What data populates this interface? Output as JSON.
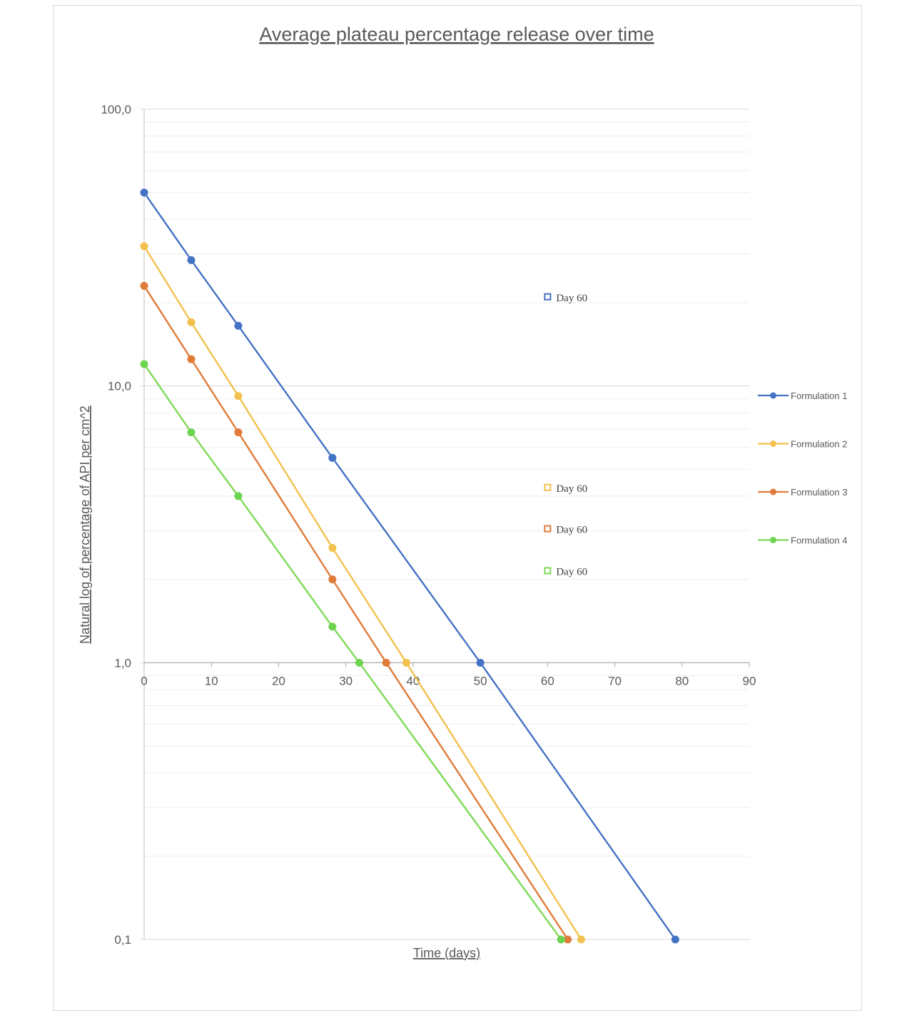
{
  "chart_data": {
    "type": "line",
    "title": "Average plateau percentage release over time",
    "xlabel": "Time (days)",
    "ylabel": "Natural log of percentage of API per cm^2",
    "xlim": [
      0,
      90
    ],
    "ylim": [
      0.1,
      100
    ],
    "yscale": "log",
    "x_ticks": [
      "0",
      "10",
      "20",
      "30",
      "40",
      "50",
      "60",
      "70",
      "80",
      "90"
    ],
    "y_ticks": [
      "0,1",
      "1,0",
      "10,0",
      "100,0"
    ],
    "grid": "horizontal major and minor",
    "legend_position": "right",
    "series": [
      {
        "name": "Formulation 1",
        "color": "#4472C4",
        "marker_color": "#4472C4",
        "x": [
          0,
          7,
          14,
          28,
          50,
          79
        ],
        "y": [
          50,
          28.5,
          16.5,
          5.5,
          1.0,
          0.1
        ]
      },
      {
        "name": "Formulation 2",
        "color": "#F2C14E",
        "marker_color": "#F2C14E",
        "x": [
          0,
          7,
          14,
          28,
          39,
          65
        ],
        "y": [
          32,
          17,
          9.2,
          2.6,
          1.0,
          0.1
        ]
      },
      {
        "name": "Formulation 3",
        "color": "#E07B39",
        "marker_color": "#E07B39",
        "x": [
          0,
          7,
          14,
          28,
          36,
          63
        ],
        "y": [
          23,
          12.5,
          6.8,
          2.0,
          1.0,
          0.1
        ]
      },
      {
        "name": "Formulation 4",
        "color": "#7ED957",
        "marker_color": "#6DD44F",
        "x": [
          0,
          7,
          14,
          28,
          32,
          62
        ],
        "y": [
          12,
          6.8,
          4.0,
          1.35,
          1.0,
          0.1
        ]
      }
    ],
    "annotations": [
      {
        "text": "Day 60",
        "x": 60,
        "y": 21,
        "color": "#4472C4"
      },
      {
        "text": "Day 60",
        "x": 60,
        "y": 4.3,
        "color": "#F2C14E"
      },
      {
        "text": "Day 60",
        "x": 60,
        "y": 3.05,
        "color": "#E07B39"
      },
      {
        "text": "Day 60",
        "x": 60,
        "y": 2.15,
        "color": "#7ED957"
      }
    ]
  }
}
